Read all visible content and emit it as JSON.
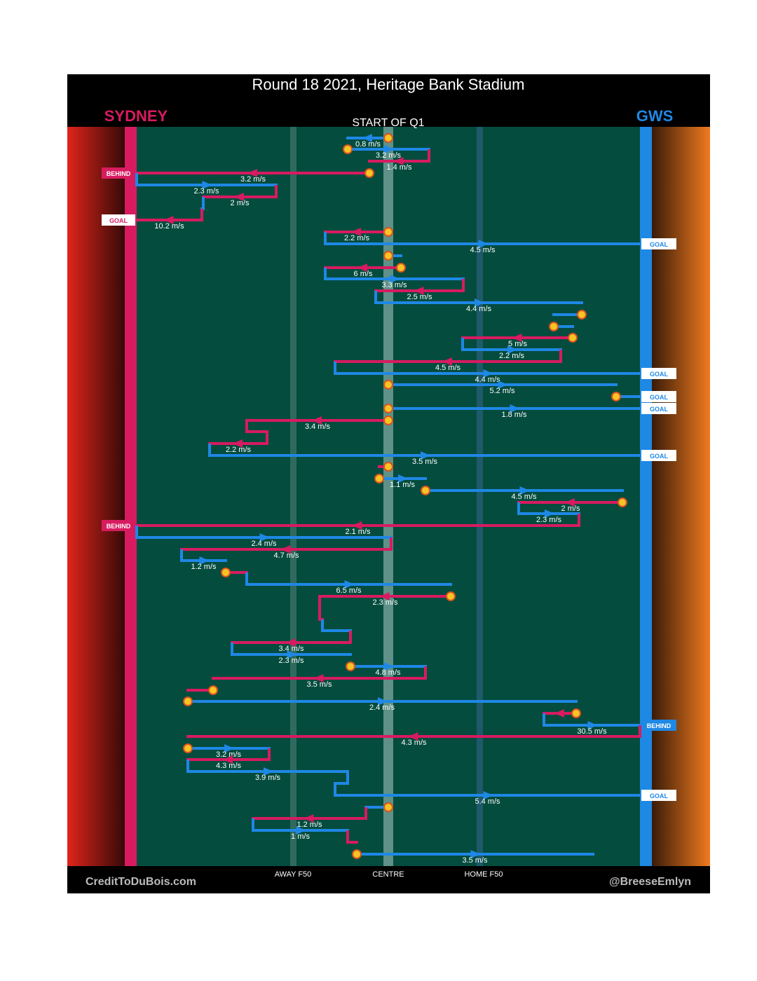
{
  "title": "Round 18 2021, Heritage Bank Stadium",
  "teams": {
    "left": "SYDNEY",
    "right": "GWS"
  },
  "subtitle": "START OF Q1",
  "zones": [
    "AWAY F50",
    "CENTRE",
    "HOME F50"
  ],
  "credits": [
    "CreditToDuBois.com",
    "@BreeseEmlyn"
  ],
  "passes": [
    {
      "speed": "0.8 m/s"
    },
    {
      "speed": "3.2 m/s"
    },
    {
      "speed": "1.4 m/s"
    },
    {
      "speed": "3.2 m/s"
    },
    {
      "speed": "2.3 m/s"
    },
    {
      "speed": "2 m/s"
    },
    {
      "speed": "10.2 m/s"
    },
    {
      "speed": "2.2 m/s"
    },
    {
      "speed": "4.5 m/s"
    },
    {
      "speed": "6 m/s"
    },
    {
      "speed": "3.3 m/s"
    },
    {
      "speed": "2.5 m/s"
    },
    {
      "speed": "4.4 m/s"
    },
    {
      "speed": "5 m/s"
    },
    {
      "speed": "2.2 m/s"
    },
    {
      "speed": "4.5 m/s"
    },
    {
      "speed": "4.4 m/s"
    },
    {
      "speed": "5.2 m/s"
    },
    {
      "speed": "1.8 m/s"
    },
    {
      "speed": "3.4 m/s"
    },
    {
      "speed": "2.2 m/s"
    },
    {
      "speed": "3.5 m/s"
    },
    {
      "speed": "1.1 m/s"
    },
    {
      "speed": "4.5 m/s"
    },
    {
      "speed": "2 m/s"
    },
    {
      "speed": "2.3 m/s"
    },
    {
      "speed": "2.1 m/s"
    },
    {
      "speed": "2.4 m/s"
    },
    {
      "speed": "4.7 m/s"
    },
    {
      "speed": "1.2 m/s"
    },
    {
      "speed": "6.5 m/s"
    },
    {
      "speed": "2.3 m/s"
    },
    {
      "speed": "3.4 m/s"
    },
    {
      "speed": "2.3 m/s"
    },
    {
      "speed": "4.8 m/s"
    },
    {
      "speed": "3.5 m/s"
    },
    {
      "speed": "2.4 m/s"
    },
    {
      "speed": "30.5 m/s"
    },
    {
      "speed": "4.3 m/s"
    },
    {
      "speed": "3.2 m/s"
    },
    {
      "speed": "4.3 m/s"
    },
    {
      "speed": "3.9 m/s"
    },
    {
      "speed": "5.4 m/s"
    },
    {
      "speed": "1.2 m/s"
    },
    {
      "speed": "1 m/s"
    },
    {
      "speed": "3.5 m/s"
    }
  ],
  "outcomes": [
    "BEHIND",
    "GOAL",
    "GOAL",
    "GOAL",
    "GOAL",
    "GOAL",
    "GOAL",
    "BEHIND",
    "BEHIND",
    "GOAL"
  ]
}
